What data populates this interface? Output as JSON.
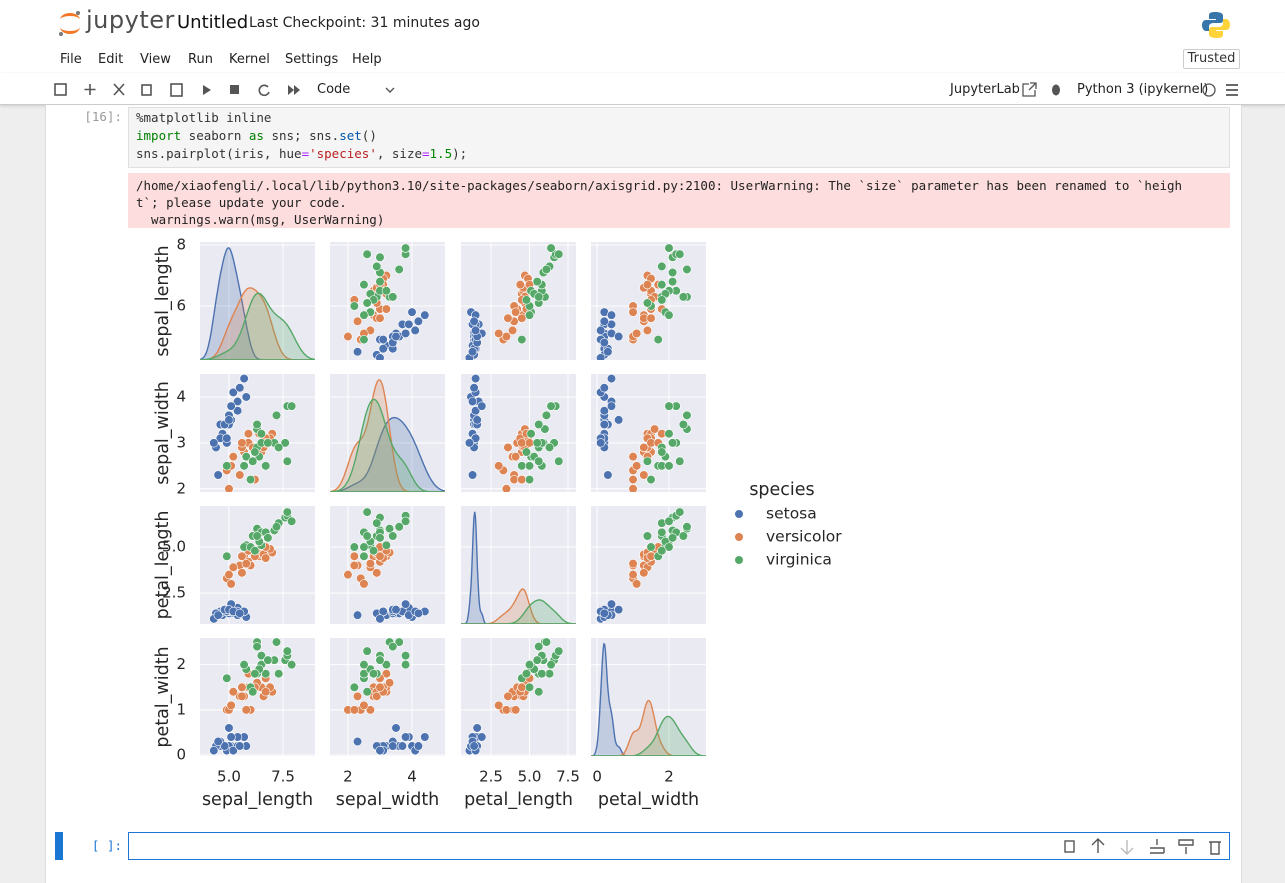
{
  "header": {
    "logo_text": "jupyter",
    "title": "Untitled",
    "checkpoint": "Last Checkpoint: 31 minutes ago"
  },
  "menu": [
    "File",
    "Edit",
    "View",
    "Run",
    "Kernel",
    "Settings",
    "Help"
  ],
  "trusted": "Trusted",
  "toolbar": {
    "cell_type": "Code",
    "jupyterlab": "JupyterLab",
    "kernel": "Python 3 (ipykernel)"
  },
  "cells": [
    {
      "prompt": "[16]:",
      "code": [
        [
          {
            "text": "%matplotlib inline",
            "color": "#333333"
          }
        ],
        [
          {
            "text": "import",
            "color": "#008000"
          },
          {
            "text": " seaborn ",
            "color": "#333333"
          },
          {
            "text": "as",
            "color": "#008000"
          },
          {
            "text": " sns; sns.",
            "color": "#333333"
          },
          {
            "text": "set",
            "color": "#0055aa"
          },
          {
            "text": "()",
            "color": "#333333"
          }
        ],
        [
          {
            "text": "sns.pairplot(iris, hue",
            "color": "#333333"
          },
          {
            "text": "=",
            "color": "#aa22ff"
          },
          {
            "text": "'species'",
            "color": "#ba2121"
          },
          {
            "text": ", size",
            "color": "#333333"
          },
          {
            "text": "=",
            "color": "#aa22ff"
          },
          {
            "text": "1.5",
            "color": "#008800"
          },
          {
            "text": ");",
            "color": "#333333"
          }
        ]
      ],
      "output": [
        "/home/xiaofengli/.local/lib/python3.10/site-packages/seaborn/axisgrid.py:2100: UserWarning: The `size` parameter has been renamed to `heigh",
        "t`; please update your code.",
        "  warnings.warn(msg, UserWarning)"
      ]
    },
    {
      "prompt": "[ ]:"
    }
  ],
  "chart_data": {
    "type": "pairplot",
    "grid": true,
    "diagonal": "kde",
    "hue_title": "species",
    "variables": [
      "sepal_length",
      "sepal_width",
      "petal_length",
      "petal_width"
    ],
    "axes": [
      {
        "xlim": [
          3.66,
          8.98
        ],
        "xticks": [
          {
            "value": 5,
            "label": "5.0"
          },
          7.5
        ],
        "ylim": [
          4.23,
          8.1
        ],
        "yticks": [
          6,
          8
        ]
      },
      {
        "xlim": [
          1.44,
          5.03
        ],
        "xticks": [
          2,
          4
        ],
        "ylim": [
          1.93,
          4.5
        ],
        "yticks": [
          2,
          3,
          4
        ]
      },
      {
        "xlim": [
          0.55,
          8.02
        ],
        "xticks": [
          2.5,
          {
            "value": 5,
            "label": "5.0"
          },
          7.5
        ],
        "ylim": [
          0.82,
          7.23
        ],
        "yticks": [
          2.5,
          {
            "value": 5,
            "label": "5.0"
          }
        ]
      },
      {
        "xlim": [
          -0.17,
          3.03
        ],
        "xticks": [
          0,
          2
        ],
        "ylim": [
          -0.02,
          2.59
        ],
        "yticks": [
          0,
          1,
          2
        ]
      }
    ],
    "series": [
      {
        "name": "setosa",
        "color": "#4c72b0",
        "values": [
          [
            5.1,
            4.9,
            4.7,
            4.6,
            5.0,
            5.4,
            4.6,
            5.0,
            4.4,
            4.9,
            5.4,
            4.8,
            4.3,
            5.8,
            5.7,
            5.4,
            5.1,
            4.5,
            5.0,
            5.2,
            5.5
          ],
          [
            3.5,
            3.0,
            3.2,
            3.1,
            3.6,
            3.9,
            3.4,
            3.4,
            2.9,
            3.1,
            3.7,
            3.4,
            3.0,
            4.0,
            4.4,
            3.9,
            3.8,
            2.3,
            3.5,
            4.1,
            4.2
          ],
          [
            1.4,
            1.4,
            1.3,
            1.5,
            1.4,
            1.7,
            1.4,
            1.5,
            1.4,
            1.5,
            1.5,
            1.6,
            1.1,
            1.2,
            1.5,
            1.3,
            1.9,
            1.3,
            1.6,
            1.5,
            1.4
          ],
          [
            0.2,
            0.2,
            0.2,
            0.2,
            0.2,
            0.4,
            0.3,
            0.2,
            0.2,
            0.1,
            0.2,
            0.2,
            0.1,
            0.2,
            0.4,
            0.4,
            0.4,
            0.3,
            0.6,
            0.1,
            0.2
          ]
        ]
      },
      {
        "name": "versicolor",
        "color": "#dd8452",
        "values": [
          [
            7.0,
            6.4,
            6.9,
            5.5,
            6.5,
            5.7,
            6.3,
            4.9,
            6.6,
            5.2,
            5.0,
            5.9,
            6.0,
            6.1,
            5.6,
            6.7,
            5.6,
            5.8,
            6.2,
            5.9,
            6.7,
            5.1
          ],
          [
            3.2,
            3.2,
            3.1,
            2.3,
            2.8,
            2.8,
            3.3,
            2.4,
            2.9,
            2.7,
            2.0,
            3.0,
            2.2,
            2.9,
            2.9,
            3.1,
            3.0,
            2.7,
            2.2,
            3.2,
            3.0,
            2.5
          ],
          [
            4.7,
            4.5,
            4.9,
            4.0,
            4.6,
            4.5,
            4.7,
            3.3,
            4.6,
            3.9,
            3.5,
            4.2,
            4.0,
            4.7,
            3.6,
            4.4,
            4.5,
            4.1,
            4.5,
            4.8,
            5.0,
            3.0
          ],
          [
            1.4,
            1.5,
            1.5,
            1.3,
            1.5,
            1.3,
            1.6,
            1.0,
            1.3,
            1.4,
            1.0,
            1.5,
            1.0,
            1.4,
            1.3,
            1.4,
            1.5,
            1.0,
            1.5,
            1.8,
            1.7,
            1.1
          ]
        ]
      },
      {
        "name": "virginica",
        "color": "#55a868",
        "values": [
          [
            6.3,
            5.8,
            7.1,
            6.3,
            6.5,
            7.6,
            4.9,
            7.3,
            6.7,
            7.2,
            6.5,
            6.4,
            6.8,
            5.7,
            7.7,
            7.7,
            6.0,
            7.9,
            6.2,
            6.1,
            6.3
          ],
          [
            3.3,
            2.7,
            3.0,
            2.9,
            3.0,
            3.0,
            2.5,
            2.9,
            2.5,
            3.6,
            3.2,
            2.7,
            3.0,
            2.5,
            3.8,
            2.6,
            2.2,
            3.8,
            2.8,
            2.6,
            3.4
          ],
          [
            6.0,
            5.1,
            5.9,
            5.6,
            5.8,
            6.6,
            4.5,
            6.3,
            5.8,
            6.1,
            5.1,
            5.3,
            5.5,
            5.0,
            6.7,
            6.9,
            5.0,
            6.4,
            4.8,
            5.6,
            5.6
          ],
          [
            2.5,
            1.9,
            2.1,
            1.8,
            2.2,
            2.1,
            1.7,
            1.8,
            1.8,
            2.5,
            2.0,
            1.9,
            2.1,
            2.0,
            2.2,
            2.3,
            1.5,
            2.0,
            1.8,
            1.4,
            2.4
          ]
        ]
      }
    ]
  }
}
